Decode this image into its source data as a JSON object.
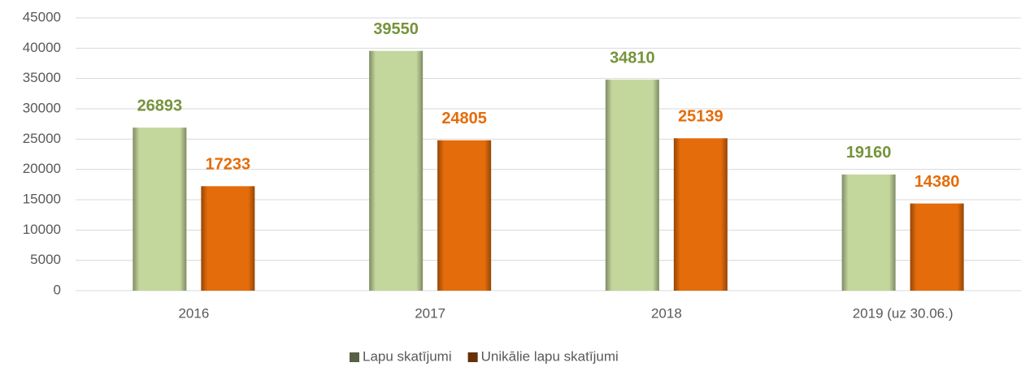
{
  "chart_data": {
    "type": "bar",
    "categories": [
      "2016",
      "2017",
      "2018",
      "2019 (uz 30.06.)"
    ],
    "series": [
      {
        "name": "Lapu skatījumi",
        "color": "#c3d69b",
        "label_color": "#77933c",
        "values": [
          26893,
          39550,
          34810,
          19160
        ]
      },
      {
        "name": "Unikālie lapu skatījumi",
        "color": "#e46c0a",
        "label_color": "#e46c0a",
        "values": [
          17233,
          24805,
          25139,
          14380
        ]
      }
    ],
    "ylim": [
      0,
      45000
    ],
    "yticks": [
      0,
      5000,
      10000,
      15000,
      20000,
      25000,
      30000,
      35000,
      40000,
      45000
    ],
    "grid": true,
    "legend": "bottom"
  }
}
